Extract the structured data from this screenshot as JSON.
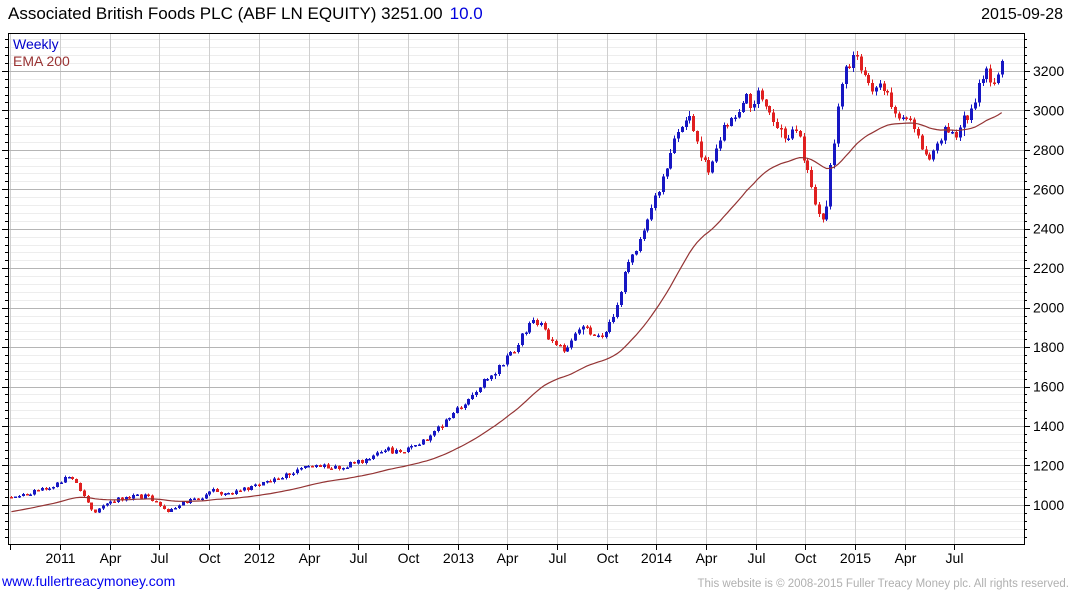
{
  "header": {
    "title": "Associated British Foods PLC (ABF LN EQUITY) 3251.00",
    "change": "10.0",
    "date": "2015-09-28"
  },
  "legend": {
    "weekly": "Weekly",
    "ema": "EMA 200"
  },
  "footer": {
    "link": "www.fullertreacymoney.com",
    "copyright": "This website is © 2008-2015 Fuller Treacy Money plc. All rights reserved."
  },
  "chart_data": {
    "type": "candlestick",
    "interval": "Weekly",
    "overlay": "EMA 200",
    "last_price": 3251.0,
    "last_change": 10.0,
    "y_axis": {
      "min": 802,
      "max": 3392,
      "tick_labels": [
        1000,
        1200,
        1400,
        1600,
        1800,
        2000,
        2200,
        2400,
        2600,
        2800,
        3000,
        3200
      ],
      "major_step": 200,
      "minor_step": 40,
      "minor_start": 840,
      "minor_end": 3360,
      "side": "right"
    },
    "x_axis": {
      "start": 2010.738,
      "end": 2015.85,
      "ticks": [
        {
          "t": 2010.75,
          "label": ""
        },
        {
          "t": 2011.0,
          "label": "2011"
        },
        {
          "t": 2011.25,
          "label": "Apr"
        },
        {
          "t": 2011.5,
          "label": "Jul"
        },
        {
          "t": 2011.75,
          "label": "Oct"
        },
        {
          "t": 2012.0,
          "label": "2012"
        },
        {
          "t": 2012.25,
          "label": "Apr"
        },
        {
          "t": 2012.5,
          "label": "Jul"
        },
        {
          "t": 2012.75,
          "label": "Oct"
        },
        {
          "t": 2013.0,
          "label": "2013"
        },
        {
          "t": 2013.25,
          "label": "Apr"
        },
        {
          "t": 2013.5,
          "label": "Jul"
        },
        {
          "t": 2013.75,
          "label": "Oct"
        },
        {
          "t": 2014.0,
          "label": "2014"
        },
        {
          "t": 2014.25,
          "label": "Apr"
        },
        {
          "t": 2014.5,
          "label": "Jul"
        },
        {
          "t": 2014.75,
          "label": "Oct"
        },
        {
          "t": 2015.0,
          "label": "2015"
        },
        {
          "t": 2015.25,
          "label": "Apr"
        },
        {
          "t": 2015.5,
          "label": "Jul"
        }
      ]
    },
    "series": {
      "name": "Weekly",
      "first_t": 2010.755,
      "last_t": 2015.742,
      "weeks_per_year": 52.18,
      "close_keypoints": [
        [
          2010.77,
          1040
        ],
        [
          2010.85,
          1062
        ],
        [
          2010.92,
          1078
        ],
        [
          2011.0,
          1122
        ],
        [
          2011.04,
          1148
        ],
        [
          2011.08,
          1105
        ],
        [
          2011.13,
          1015
        ],
        [
          2011.17,
          958
        ],
        [
          2011.21,
          992
        ],
        [
          2011.27,
          1022
        ],
        [
          2011.35,
          1042
        ],
        [
          2011.44,
          1046
        ],
        [
          2011.5,
          1002
        ],
        [
          2011.54,
          966
        ],
        [
          2011.6,
          1006
        ],
        [
          2011.69,
          1032
        ],
        [
          2011.77,
          1072
        ],
        [
          2011.85,
          1052
        ],
        [
          2011.92,
          1076
        ],
        [
          2012.0,
          1102
        ],
        [
          2012.1,
          1142
        ],
        [
          2012.2,
          1176
        ],
        [
          2012.29,
          1206
        ],
        [
          2012.37,
          1182
        ],
        [
          2012.45,
          1206
        ],
        [
          2012.54,
          1226
        ],
        [
          2012.62,
          1286
        ],
        [
          2012.7,
          1266
        ],
        [
          2012.79,
          1306
        ],
        [
          2012.87,
          1356
        ],
        [
          2012.95,
          1432
        ],
        [
          2013.04,
          1522
        ],
        [
          2013.12,
          1612
        ],
        [
          2013.2,
          1692
        ],
        [
          2013.28,
          1782
        ],
        [
          2013.33,
          1872
        ],
        [
          2013.37,
          1942
        ],
        [
          2013.42,
          1902
        ],
        [
          2013.48,
          1832
        ],
        [
          2013.54,
          1772
        ],
        [
          2013.58,
          1852
        ],
        [
          2013.62,
          1906
        ],
        [
          2013.67,
          1876
        ],
        [
          2013.71,
          1846
        ],
        [
          2013.75,
          1896
        ],
        [
          2013.79,
          1986
        ],
        [
          2013.83,
          2122
        ],
        [
          2013.87,
          2262
        ],
        [
          2013.92,
          2342
        ],
        [
          2013.96,
          2442
        ],
        [
          2014.0,
          2562
        ],
        [
          2014.04,
          2692
        ],
        [
          2014.08,
          2802
        ],
        [
          2014.13,
          2932
        ],
        [
          2014.16,
          3002
        ],
        [
          2014.19,
          2892
        ],
        [
          2014.22,
          2762
        ],
        [
          2014.26,
          2702
        ],
        [
          2014.31,
          2822
        ],
        [
          2014.35,
          2932
        ],
        [
          2014.4,
          2992
        ],
        [
          2014.44,
          3062
        ],
        [
          2014.48,
          3032
        ],
        [
          2014.52,
          3092
        ],
        [
          2014.56,
          3022
        ],
        [
          2014.6,
          2942
        ],
        [
          2014.65,
          2882
        ],
        [
          2014.69,
          2902
        ],
        [
          2014.73,
          2822
        ],
        [
          2014.77,
          2652
        ],
        [
          2014.81,
          2482
        ],
        [
          2014.84,
          2422
        ],
        [
          2014.86,
          2552
        ],
        [
          2014.88,
          2752
        ],
        [
          2014.9,
          2902
        ],
        [
          2014.92,
          3052
        ],
        [
          2014.94,
          3152
        ],
        [
          2014.96,
          3232
        ],
        [
          2015.0,
          3268
        ],
        [
          2015.04,
          3182
        ],
        [
          2015.08,
          3102
        ],
        [
          2015.12,
          3158
        ],
        [
          2015.16,
          3082
        ],
        [
          2015.2,
          3002
        ],
        [
          2015.24,
          2942
        ],
        [
          2015.28,
          2982
        ],
        [
          2015.3,
          2882
        ],
        [
          2015.34,
          2792
        ],
        [
          2015.38,
          2742
        ],
        [
          2015.42,
          2832
        ],
        [
          2015.45,
          2942
        ],
        [
          2015.5,
          2862
        ],
        [
          2015.55,
          2952
        ],
        [
          2015.6,
          3052
        ],
        [
          2015.63,
          3132
        ],
        [
          2015.66,
          3202
        ],
        [
          2015.68,
          3122
        ],
        [
          2015.71,
          3162
        ],
        [
          2015.742,
          3251
        ]
      ],
      "noise_amp": 0.011,
      "wick_amp": 0.006,
      "seed": 11
    },
    "ema": {
      "name": "EMA 200",
      "alpha": 0.046,
      "seed_value": 962
    },
    "colors": {
      "up": "#1717c3",
      "down": "#e02020",
      "ema": "#943434",
      "grid_minor": "#ededed",
      "grid_major": "#b5b5b5",
      "grid_vertical": "#cfcfcf",
      "frame": "#000000",
      "axis_text": "#000000",
      "legend_weekly": "#0000cc",
      "legend_ema": "#993333",
      "change_text": "#0000dd",
      "link_text": "#0000ee",
      "copyright_text": "#b0b0b0"
    }
  }
}
